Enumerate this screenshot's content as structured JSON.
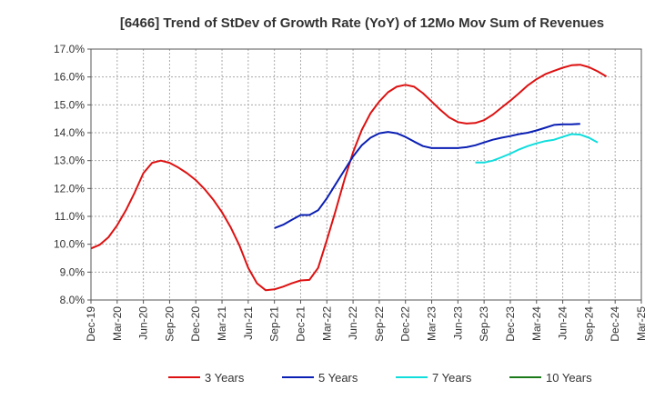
{
  "chart_data": {
    "type": "line",
    "title": "[6466]  Trend of StDev of Growth Rate (YoY) of 12Mo Mov Sum of Revenues",
    "xlabel": "",
    "ylabel": "",
    "ylim": [
      8.0,
      17.0
    ],
    "y_ticks": [
      "8.0%",
      "9.0%",
      "10.0%",
      "11.0%",
      "12.0%",
      "13.0%",
      "14.0%",
      "15.0%",
      "16.0%",
      "17.0%"
    ],
    "x_ticks": [
      "Dec-19",
      "Mar-20",
      "Jun-20",
      "Sep-20",
      "Dec-20",
      "Mar-21",
      "Jun-21",
      "Sep-21",
      "Dec-21",
      "Mar-22",
      "Jun-22",
      "Sep-22",
      "Dec-22",
      "Mar-23",
      "Jun-23",
      "Sep-23",
      "Dec-23",
      "Mar-24",
      "Jun-24",
      "Sep-24",
      "Dec-24",
      "Mar-25"
    ],
    "x_range_months": [
      0,
      63
    ],
    "grid": true,
    "legend_position": "bottom",
    "series": [
      {
        "name": "3 Years",
        "color": "#dd1111",
        "start_month": 0,
        "values": [
          9.85,
          9.98,
          10.25,
          10.68,
          11.22,
          11.85,
          12.55,
          12.92,
          13.0,
          12.92,
          12.75,
          12.55,
          12.3,
          11.98,
          11.6,
          11.15,
          10.6,
          9.95,
          9.15,
          8.6,
          8.35,
          8.38,
          8.48,
          8.6,
          8.7,
          8.72,
          9.15,
          10.15,
          11.2,
          12.3,
          13.3,
          14.1,
          14.7,
          15.12,
          15.45,
          15.65,
          15.72,
          15.65,
          15.42,
          15.12,
          14.82,
          14.55,
          14.38,
          14.33,
          14.35,
          14.45,
          14.65,
          14.9,
          15.15,
          15.42,
          15.7,
          15.92,
          16.1,
          16.22,
          16.33,
          16.42,
          16.44,
          16.35,
          16.2,
          16.02
        ]
      },
      {
        "name": "5 Years",
        "color": "#0a1fb3",
        "start_month": 21,
        "values": [
          10.58,
          10.7,
          10.88,
          11.05,
          11.05,
          11.22,
          11.65,
          12.15,
          12.65,
          13.15,
          13.55,
          13.82,
          13.98,
          14.03,
          13.98,
          13.85,
          13.68,
          13.52,
          13.45,
          13.45,
          13.45,
          13.45,
          13.48,
          13.55,
          13.65,
          13.75,
          13.82,
          13.88,
          13.95,
          14.0,
          14.08,
          14.18,
          14.28,
          14.3,
          14.3,
          14.32
        ]
      },
      {
        "name": "7 Years",
        "color": "#11dddd",
        "start_month": 44,
        "values": [
          12.93,
          12.93,
          13.0,
          13.12,
          13.25,
          13.4,
          13.52,
          13.62,
          13.7,
          13.75,
          13.85,
          13.95,
          13.93,
          13.82,
          13.65
        ]
      },
      {
        "name": "10 Years",
        "color": "#1a7a1a",
        "start_month": 0,
        "values": []
      }
    ]
  }
}
